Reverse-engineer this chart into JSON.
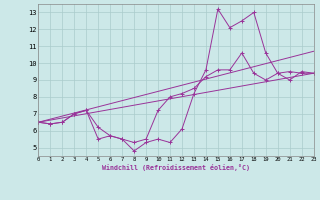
{
  "background_color": "#cce8e8",
  "grid_color": "#aacccc",
  "line_color": "#993399",
  "xlabel": "Windchill (Refroidissement éolien,°C)",
  "xlim": [
    0,
    23
  ],
  "ylim": [
    4.5,
    13.5
  ],
  "yticks": [
    5,
    6,
    7,
    8,
    9,
    10,
    11,
    12,
    13
  ],
  "xticks": [
    0,
    1,
    2,
    3,
    4,
    5,
    6,
    7,
    8,
    9,
    10,
    11,
    12,
    13,
    14,
    15,
    16,
    17,
    18,
    19,
    20,
    21,
    22,
    23
  ],
  "series1_x": [
    0,
    1,
    2,
    3,
    4,
    5,
    6,
    7,
    8,
    9,
    10,
    11,
    12,
    13,
    14,
    15,
    16,
    17,
    18,
    19,
    20,
    21,
    22,
    23
  ],
  "series1_y": [
    6.5,
    6.4,
    6.5,
    7.0,
    7.2,
    5.5,
    5.7,
    5.5,
    4.8,
    5.3,
    5.5,
    5.3,
    6.1,
    8.2,
    9.6,
    13.2,
    12.1,
    12.5,
    13.0,
    10.6,
    9.4,
    9.0,
    9.5,
    9.4
  ],
  "series2_x": [
    0,
    1,
    2,
    3,
    4,
    5,
    6,
    7,
    8,
    9,
    10,
    11,
    12,
    13,
    14,
    15,
    16,
    17,
    18,
    19,
    20,
    21,
    22,
    23
  ],
  "series2_y": [
    6.5,
    6.4,
    6.5,
    7.0,
    7.2,
    6.2,
    5.7,
    5.5,
    5.3,
    5.5,
    7.2,
    8.0,
    8.2,
    8.5,
    9.2,
    9.6,
    9.6,
    10.6,
    9.4,
    9.0,
    9.4,
    9.5,
    9.4,
    9.4
  ],
  "trend1_x": [
    0,
    23
  ],
  "trend1_y": [
    6.5,
    10.7
  ],
  "trend2_x": [
    0,
    23
  ],
  "trend2_y": [
    6.5,
    9.4
  ]
}
